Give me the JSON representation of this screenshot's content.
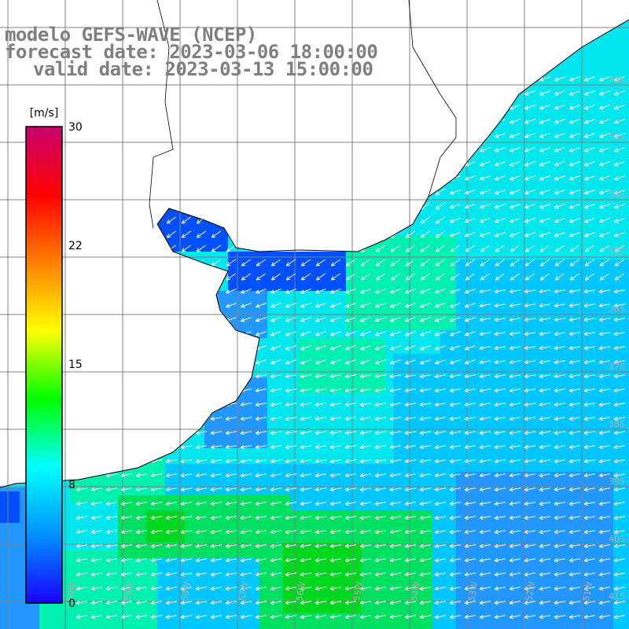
{
  "title": {
    "line1": "modelo GEFS-WAVE (NCEP)",
    "line2": "forecast date: 2023-03-06 18:00:00",
    "line3": "valid date: 2023-03-13 15:00:00"
  },
  "colorbar": {
    "unit": "[m/s]",
    "ticks": [
      "30",
      "22",
      "15",
      "8",
      "0"
    ],
    "min": 0,
    "max": 30,
    "colors": [
      "#1a00ff",
      "#0090ff",
      "#00ffff",
      "#00ff00",
      "#ffff00",
      "#ff8000",
      "#ff0000",
      "#c8006e"
    ]
  },
  "grid": {
    "lat_labels": [
      "32S",
      "33S",
      "34S",
      "35S",
      "36S",
      "37S",
      "38S",
      "39S",
      "40S",
      "41S"
    ],
    "lon_labels": [
      "60W",
      "59W",
      "58W",
      "57W",
      "56W",
      "55W",
      "54W",
      "53W",
      "52W",
      "51W"
    ]
  },
  "map": {
    "variable": "wind speed",
    "field_colors": {
      "deep_blue": "#0050ff",
      "blue": "#2098ff",
      "sky": "#00c8ff",
      "aqua": "#00e8ee",
      "mint": "#00f0b0",
      "green": "#00e060",
      "bright_green": "#00d820"
    },
    "land_color": "#ffffff",
    "grid_color": "#808080",
    "arrow_color": "#ffffff"
  }
}
